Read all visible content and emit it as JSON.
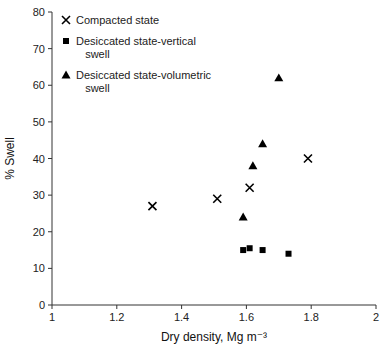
{
  "chart_data": {
    "type": "scatter",
    "xlabel": "Dry density, Mg m⁻³",
    "ylabel": "% Swell",
    "series": [
      {
        "name": "Compacted state",
        "color": "black",
        "marker": "x",
        "x": [
          1.31,
          1.51,
          1.61,
          1.79
        ],
        "values": [
          27,
          29,
          32,
          40
        ]
      },
      {
        "name": "Desiccated state-vertical\n   swell",
        "color": "black",
        "marker": "square",
        "x": [
          1.59,
          1.61,
          1.65,
          1.73
        ],
        "values": [
          15,
          15.5,
          15,
          14
        ]
      },
      {
        "name": "Desiccated state-volumetric\n   swell",
        "color": "black",
        "marker": "triangle",
        "x": [
          1.59,
          1.62,
          1.65,
          1.7
        ],
        "values": [
          24,
          38,
          44,
          62
        ]
      }
    ],
    "xlim": [
      1,
      2
    ],
    "ylim": [
      0,
      80
    ],
    "xticks": [
      1,
      1.2,
      1.4,
      1.6,
      1.8,
      2
    ],
    "yticks": [
      0,
      10,
      20,
      30,
      40,
      50,
      60,
      70,
      80
    ],
    "legend": "upper left"
  }
}
